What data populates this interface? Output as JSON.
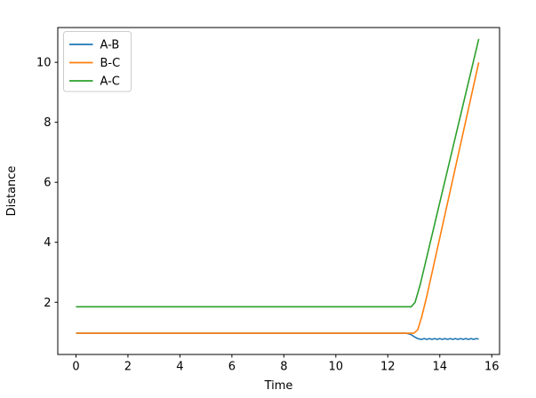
{
  "chart_data": {
    "type": "line",
    "title": "",
    "xlabel": "Time",
    "ylabel": "Distance",
    "xlim": [
      -0.7,
      16.3
    ],
    "ylim": [
      0.26,
      11.16
    ],
    "xticks": [
      0,
      2,
      4,
      6,
      8,
      10,
      12,
      14,
      16
    ],
    "yticks": [
      2,
      4,
      6,
      8,
      10
    ],
    "grid": false,
    "background_color": "#ffffff",
    "axes_edge_color": "#000000",
    "legend": {
      "position": "upper-left",
      "entries": [
        "A-B",
        "B-C",
        "A-C"
      ]
    },
    "series": [
      {
        "name": "A-B",
        "color": "#1f77b4",
        "points": [
          [
            0,
            0.97
          ],
          [
            12.7,
            0.97
          ],
          [
            12.88,
            0.93
          ],
          [
            13.02,
            0.85
          ],
          [
            13.15,
            0.79
          ],
          [
            13.3,
            0.762
          ],
          [
            13.4,
            0.79
          ],
          [
            13.5,
            0.762
          ],
          [
            13.6,
            0.79
          ],
          [
            13.7,
            0.762
          ],
          [
            13.8,
            0.79
          ],
          [
            13.9,
            0.762
          ],
          [
            14.0,
            0.79
          ],
          [
            14.1,
            0.762
          ],
          [
            14.2,
            0.79
          ],
          [
            14.3,
            0.762
          ],
          [
            14.4,
            0.79
          ],
          [
            14.5,
            0.762
          ],
          [
            14.6,
            0.79
          ],
          [
            14.7,
            0.762
          ],
          [
            14.8,
            0.79
          ],
          [
            14.9,
            0.762
          ],
          [
            15.0,
            0.79
          ],
          [
            15.1,
            0.762
          ],
          [
            15.2,
            0.79
          ],
          [
            15.3,
            0.762
          ],
          [
            15.4,
            0.79
          ],
          [
            15.5,
            0.77
          ]
        ]
      },
      {
        "name": "B-C",
        "color": "#ff7f0e",
        "points": [
          [
            0,
            0.97
          ],
          [
            13.0,
            0.97
          ],
          [
            13.15,
            1.08
          ],
          [
            13.3,
            1.5
          ],
          [
            13.5,
            2.2
          ],
          [
            15.5,
            10.0
          ]
        ]
      },
      {
        "name": "A-C",
        "color": "#2ca02c",
        "points": [
          [
            0,
            1.85
          ],
          [
            12.9,
            1.85
          ],
          [
            13.05,
            2.0
          ],
          [
            13.25,
            2.6
          ],
          [
            15.5,
            10.78
          ]
        ]
      }
    ]
  }
}
